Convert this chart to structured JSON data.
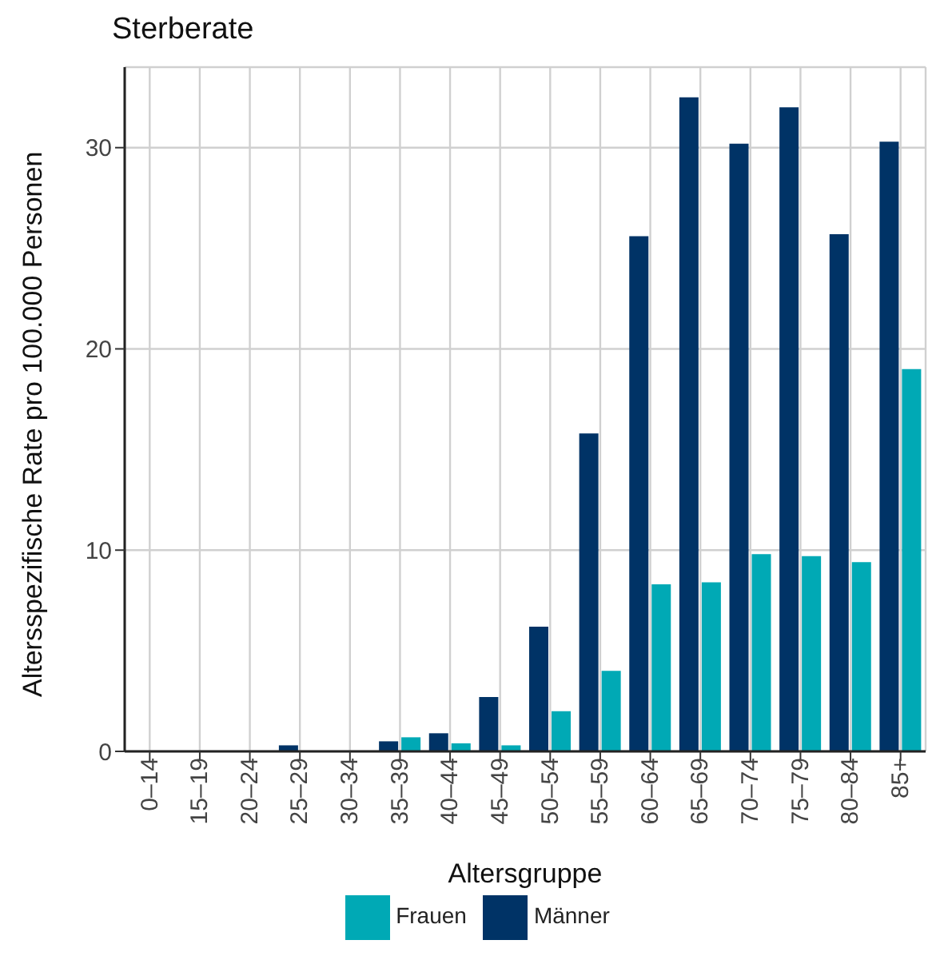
{
  "chart_data": {
    "type": "bar",
    "title": "Sterberate",
    "xlabel": "Altersgruppe",
    "ylabel": "Altersspezifische Rate pro 100.000 Personen",
    "categories": [
      "0–14",
      "15–19",
      "20–24",
      "25–29",
      "30–34",
      "35–39",
      "40–44",
      "45–49",
      "50–54",
      "55–59",
      "60–64",
      "65–69",
      "70–74",
      "75–79",
      "80–84",
      "85+"
    ],
    "series": [
      {
        "name": "Männer",
        "color": "#003366",
        "values": [
          0,
          0,
          0,
          0.3,
          0,
          0.5,
          0.9,
          2.7,
          6.2,
          15.8,
          25.6,
          32.5,
          30.2,
          32.0,
          25.7,
          30.3
        ]
      },
      {
        "name": "Frauen",
        "color": "#00a9b5",
        "values": [
          0,
          0,
          0,
          0,
          0,
          0.7,
          0.4,
          0.3,
          2.0,
          4.0,
          8.3,
          8.4,
          9.8,
          9.7,
          9.4,
          19.0
        ]
      }
    ],
    "ylim": [
      0,
      34
    ],
    "yticks": [
      0,
      10,
      20,
      30
    ],
    "grid": true,
    "legend": "bottom"
  }
}
